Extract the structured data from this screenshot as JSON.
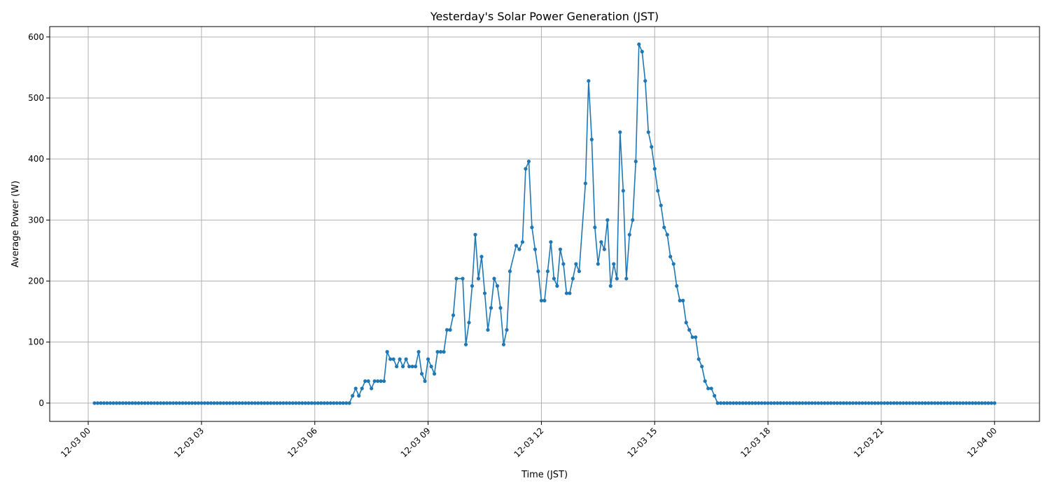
{
  "chart_data": {
    "type": "line",
    "title": "Yesterday's Solar Power Generation (JST)",
    "xlabel": "Time (JST)",
    "ylabel": "Average Power (W)",
    "x_start": "12-03 00:10",
    "x_step_minutes": 5,
    "xlim_hours": [
      -1.02,
      25.19
    ],
    "ylim": [
      -30,
      617
    ],
    "grid": true,
    "color": "#1f77b4",
    "x_ticks": [
      {
        "hour": 0,
        "label": "12-03 00"
      },
      {
        "hour": 3,
        "label": "12-03 03"
      },
      {
        "hour": 6,
        "label": "12-03 06"
      },
      {
        "hour": 9,
        "label": "12-03 09"
      },
      {
        "hour": 12,
        "label": "12-03 12"
      },
      {
        "hour": 15,
        "label": "12-03 15"
      },
      {
        "hour": 18,
        "label": "12-03 18"
      },
      {
        "hour": 21,
        "label": "12-03 21"
      },
      {
        "hour": 24,
        "label": "12-04 00"
      }
    ],
    "y_ticks": [
      0,
      100,
      200,
      300,
      400,
      500,
      600
    ],
    "series": [
      {
        "name": "Average Power (W)",
        "values": [
          0,
          0,
          0,
          0,
          0,
          0,
          0,
          0,
          0,
          0,
          0,
          0,
          0,
          0,
          0,
          0,
          0,
          0,
          0,
          0,
          0,
          0,
          0,
          0,
          0,
          0,
          0,
          0,
          0,
          0,
          0,
          0,
          0,
          0,
          0,
          0,
          0,
          0,
          0,
          0,
          0,
          0,
          0,
          0,
          0,
          0,
          0,
          0,
          0,
          0,
          0,
          0,
          0,
          0,
          0,
          0,
          0,
          0,
          0,
          0,
          0,
          0,
          0,
          0,
          0,
          0,
          0,
          0,
          0,
          0,
          0,
          0,
          0,
          0,
          0,
          0,
          0,
          0,
          0,
          0,
          0,
          0,
          12,
          24,
          12,
          24,
          36,
          36,
          24,
          36,
          36,
          36,
          36,
          84,
          72,
          72,
          60,
          72,
          60,
          72,
          60,
          60,
          60,
          84,
          48,
          36,
          72,
          60,
          48,
          84,
          84,
          84,
          120,
          120,
          144,
          204,
          null,
          204,
          96,
          132,
          192,
          276,
          204,
          240,
          180,
          120,
          156,
          204,
          192,
          156,
          96,
          120,
          216,
          null,
          258,
          252,
          264,
          384,
          396,
          288,
          252,
          216,
          168,
          168,
          216,
          264,
          204,
          192,
          252,
          228,
          180,
          180,
          204,
          228,
          216,
          null,
          360,
          528,
          432,
          288,
          228,
          264,
          252,
          300,
          192,
          228,
          204,
          444,
          348,
          204,
          276,
          300,
          396,
          588,
          576,
          528,
          444,
          420,
          384,
          348,
          324,
          288,
          276,
          240,
          228,
          192,
          168,
          168,
          132,
          120,
          108,
          108,
          72,
          60,
          36,
          24,
          24,
          12,
          0,
          0,
          0,
          0,
          0,
          0,
          0,
          0,
          0,
          0,
          0,
          0,
          0,
          0,
          0,
          0,
          0,
          0,
          0,
          0,
          0,
          0,
          0,
          0,
          0,
          0,
          0,
          0,
          0,
          0,
          0,
          0,
          0,
          0,
          0,
          0,
          0,
          0,
          0,
          0,
          0,
          0,
          0,
          0,
          0,
          0,
          0,
          0,
          0,
          0,
          0,
          0,
          0,
          0,
          0,
          0,
          0,
          0,
          0,
          0,
          0,
          0,
          0,
          0,
          0,
          0,
          0,
          0,
          0,
          0,
          0,
          0,
          0,
          0,
          0,
          0,
          0,
          0,
          0,
          0,
          0,
          0,
          0,
          0,
          0,
          0,
          0,
          0,
          0
        ]
      }
    ]
  }
}
